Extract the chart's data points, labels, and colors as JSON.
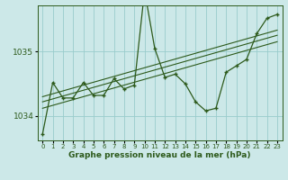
{
  "xlabel": "Graphe pression niveau de la mer (hPa)",
  "background_color": "#cce8e8",
  "grid_color": "#99cccc",
  "line_color": "#2d5a1b",
  "ylim": [
    1033.62,
    1035.72
  ],
  "yticks": [
    1034,
    1035
  ],
  "main_data": [
    1033.72,
    1034.52,
    1034.28,
    1034.28,
    1034.52,
    1034.32,
    1034.32,
    1034.58,
    1034.42,
    1034.48,
    1035.95,
    1035.05,
    1034.6,
    1034.65,
    1034.5,
    1034.22,
    1034.08,
    1034.12,
    1034.68,
    1034.78,
    1034.88,
    1035.28,
    1035.52,
    1035.58
  ],
  "trend_line1": [
    1034.3,
    1034.345,
    1034.39,
    1034.435,
    1034.48,
    1034.525,
    1034.57,
    1034.615,
    1034.66,
    1034.705,
    1034.75,
    1034.795,
    1034.84,
    1034.885,
    1034.93,
    1034.975,
    1035.02,
    1035.065,
    1035.11,
    1035.155,
    1035.2,
    1035.245,
    1035.29,
    1035.335
  ],
  "trend_line2": [
    1034.22,
    1034.265,
    1034.31,
    1034.355,
    1034.4,
    1034.445,
    1034.49,
    1034.535,
    1034.58,
    1034.625,
    1034.67,
    1034.715,
    1034.76,
    1034.805,
    1034.85,
    1034.895,
    1034.94,
    1034.985,
    1035.03,
    1035.075,
    1035.12,
    1035.165,
    1035.21,
    1035.255
  ],
  "trend_line3": [
    1034.12,
    1034.165,
    1034.21,
    1034.255,
    1034.3,
    1034.345,
    1034.39,
    1034.435,
    1034.48,
    1034.525,
    1034.57,
    1034.615,
    1034.66,
    1034.705,
    1034.75,
    1034.795,
    1034.84,
    1034.885,
    1034.93,
    1034.975,
    1035.02,
    1035.065,
    1035.11,
    1035.155
  ]
}
